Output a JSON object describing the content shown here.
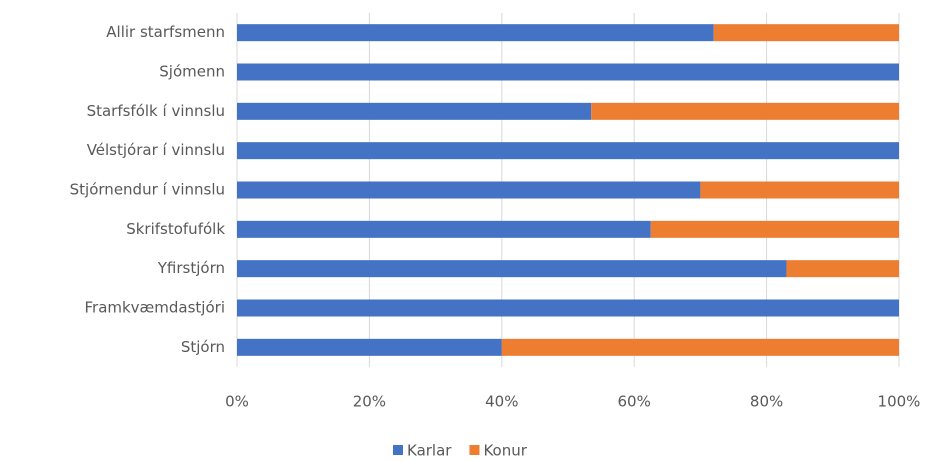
{
  "chart_data": {
    "type": "stacked_bar_horizontal",
    "categories": [
      "Allir starfsmenn",
      "Sjómenn",
      "Starfsfólk í vinnslu",
      "Vélstjórar í vinnslu",
      "Stjórnendur í vinnslu",
      "Skrifstofufólk",
      "Yfirstjórn",
      "Framkvæmdastjóri",
      "Stjórn"
    ],
    "series": [
      {
        "name": "Karlar",
        "color": "#4472c4",
        "values": [
          72,
          100,
          53.5,
          100,
          70,
          62.5,
          83,
          100,
          40
        ]
      },
      {
        "name": "Konur",
        "color": "#ed7d31",
        "values": [
          28,
          0,
          46.5,
          0,
          30,
          37.5,
          17,
          0,
          60
        ]
      }
    ],
    "xlim": [
      0,
      100
    ],
    "xticks": [
      {
        "value": 0,
        "label": "0%"
      },
      {
        "value": 20,
        "label": "20%"
      },
      {
        "value": 40,
        "label": "40%"
      },
      {
        "value": 60,
        "label": "60%"
      },
      {
        "value": 80,
        "label": "80%"
      },
      {
        "value": 100,
        "label": "100%"
      }
    ],
    "grid": true,
    "legend": "bottom"
  }
}
